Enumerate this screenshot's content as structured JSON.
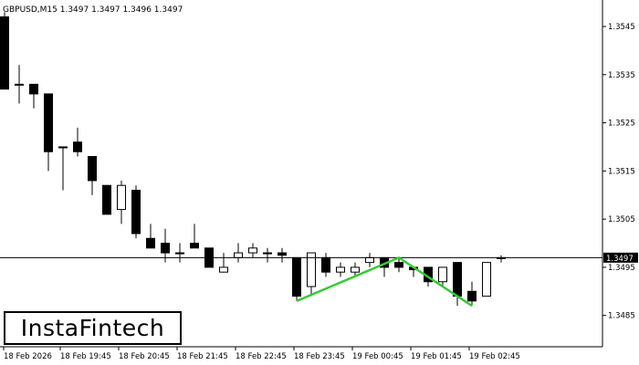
{
  "header": {
    "info": "GBPUSD,M15  1.3497 1.3497 1.3496 1.3497"
  },
  "logo": {
    "text": "InstaFintech"
  },
  "price_marker": {
    "label": "1.3497"
  },
  "chart_data": {
    "type": "candlestick",
    "symbol": "GBPUSD",
    "timeframe": "M15",
    "ylim": [
      1.34785,
      1.35505
    ],
    "y_ticks": [
      "1.3545",
      "1.3535",
      "1.3525",
      "1.3515",
      "1.3505",
      "1.3495",
      "1.3485"
    ],
    "x_ticks": [
      "18 Feb 2026",
      "18 Feb 19:45",
      "18 Feb 20:45",
      "18 Feb 21:45",
      "18 Feb 22:45",
      "18 Feb 23:45",
      "19 Feb 00:45",
      "19 Feb 01:45",
      "19 Feb 02:45"
    ],
    "current_price": 1.3497,
    "grid": false,
    "candles": [
      {
        "o": 1.3547,
        "h": 1.3548,
        "l": 1.3532,
        "c": 1.3532
      },
      {
        "o": 1.3533,
        "h": 1.3537,
        "l": 1.3529,
        "c": 1.3533
      },
      {
        "o": 1.3533,
        "h": 1.3533,
        "l": 1.3528,
        "c": 1.3531
      },
      {
        "o": 1.3531,
        "h": 1.3531,
        "l": 1.3515,
        "c": 1.3519
      },
      {
        "o": 1.352,
        "h": 1.352,
        "l": 1.3511,
        "c": 1.352
      },
      {
        "o": 1.3521,
        "h": 1.3524,
        "l": 1.3518,
        "c": 1.3519
      },
      {
        "o": 1.3518,
        "h": 1.3518,
        "l": 1.351,
        "c": 1.3513
      },
      {
        "o": 1.3512,
        "h": 1.3512,
        "l": 1.3506,
        "c": 1.3506
      },
      {
        "o": 1.3507,
        "h": 1.3513,
        "l": 1.3504,
        "c": 1.3512
      },
      {
        "o": 1.3511,
        "h": 1.3512,
        "l": 1.3501,
        "c": 1.3502
      },
      {
        "o": 1.3501,
        "h": 1.3504,
        "l": 1.3499,
        "c": 1.3499
      },
      {
        "o": 1.35,
        "h": 1.3503,
        "l": 1.3496,
        "c": 1.3498
      },
      {
        "o": 1.3498,
        "h": 1.35,
        "l": 1.3496,
        "c": 1.3498
      },
      {
        "o": 1.35,
        "h": 1.3504,
        "l": 1.3499,
        "c": 1.3499
      },
      {
        "o": 1.3499,
        "h": 1.3499,
        "l": 1.3495,
        "c": 1.3495
      },
      {
        "o": 1.3494,
        "h": 1.3498,
        "l": 1.3494,
        "c": 1.3495
      },
      {
        "o": 1.3497,
        "h": 1.35,
        "l": 1.3496,
        "c": 1.3498
      },
      {
        "o": 1.3498,
        "h": 1.35,
        "l": 1.3497,
        "c": 1.3499
      },
      {
        "o": 1.3498,
        "h": 1.3499,
        "l": 1.3496,
        "c": 1.3498
      },
      {
        "o": 1.3498,
        "h": 1.3499,
        "l": 1.3496,
        "c": 1.34975
      },
      {
        "o": 1.3497,
        "h": 1.3497,
        "l": 1.3488,
        "c": 1.3489
      },
      {
        "o": 1.3491,
        "h": 1.3498,
        "l": 1.3489,
        "c": 1.3498
      },
      {
        "o": 1.3497,
        "h": 1.3498,
        "l": 1.3493,
        "c": 1.3494
      },
      {
        "o": 1.3494,
        "h": 1.3496,
        "l": 1.3493,
        "c": 1.3495
      },
      {
        "o": 1.3494,
        "h": 1.3496,
        "l": 1.3493,
        "c": 1.3495
      },
      {
        "o": 1.3496,
        "h": 1.3498,
        "l": 1.3495,
        "c": 1.3497
      },
      {
        "o": 1.3497,
        "h": 1.3497,
        "l": 1.3493,
        "c": 1.3495
      },
      {
        "o": 1.3496,
        "h": 1.3497,
        "l": 1.3494,
        "c": 1.3495
      },
      {
        "o": 1.3495,
        "h": 1.3495,
        "l": 1.3493,
        "c": 1.34945
      },
      {
        "o": 1.3495,
        "h": 1.3495,
        "l": 1.3491,
        "c": 1.3492
      },
      {
        "o": 1.3492,
        "h": 1.3495,
        "l": 1.3491,
        "c": 1.3495
      },
      {
        "o": 1.3496,
        "h": 1.3496,
        "l": 1.3487,
        "c": 1.3489
      },
      {
        "o": 1.349,
        "h": 1.3492,
        "l": 1.3487,
        "c": 1.3488
      },
      {
        "o": 1.3489,
        "h": 1.3496,
        "l": 1.3489,
        "c": 1.3496
      },
      {
        "o": 1.3497,
        "h": 1.34975,
        "l": 1.3496,
        "c": 1.3497
      }
    ],
    "pattern_line": {
      "color": "#33cc33",
      "points": [
        {
          "candle": 20,
          "price": 1.3488
        },
        {
          "candle": 27,
          "price": 1.3497
        },
        {
          "candle": 32,
          "price": 1.3487
        }
      ]
    }
  }
}
